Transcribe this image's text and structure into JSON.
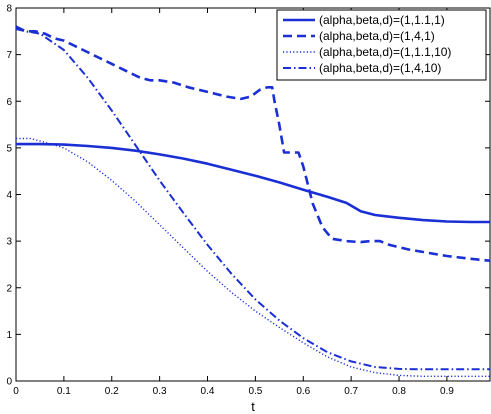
{
  "chart_data": {
    "type": "line",
    "title": "",
    "xlabel": "t",
    "ylabel": "",
    "xlim": [
      0,
      0.99
    ],
    "ylim": [
      0,
      8
    ],
    "xticks": [
      0,
      0.1,
      0.2,
      0.3,
      0.4,
      0.5,
      0.6,
      0.7,
      0.8,
      0.9
    ],
    "xtick_labels": [
      "0",
      "0.1",
      "0.2",
      "0.3",
      "0.4",
      "0.5",
      "0.6",
      "0.7",
      "0.8",
      "0.9"
    ],
    "yticks": [
      0,
      1,
      2,
      3,
      4,
      5,
      6,
      7,
      8
    ],
    "ytick_labels": [
      "0",
      "1",
      "2",
      "3",
      "4",
      "5",
      "6",
      "7",
      "8"
    ],
    "grid": false,
    "legend_position": "top-right",
    "color": "#1a2fd4",
    "series": [
      {
        "name": "(alpha,beta,d)=(1,1.1,1)",
        "style": "solid",
        "x": [
          0,
          0.05,
          0.1,
          0.15,
          0.2,
          0.25,
          0.3,
          0.35,
          0.4,
          0.45,
          0.5,
          0.55,
          0.6,
          0.65,
          0.69,
          0.72,
          0.75,
          0.8,
          0.85,
          0.9,
          0.95,
          0.99
        ],
        "y": [
          5.08,
          5.08,
          5.07,
          5.04,
          5.0,
          4.94,
          4.86,
          4.77,
          4.66,
          4.53,
          4.4,
          4.26,
          4.1,
          3.95,
          3.82,
          3.64,
          3.56,
          3.5,
          3.45,
          3.42,
          3.41,
          3.41
        ]
      },
      {
        "name": "(alpha,beta,d)=(1,4,1)",
        "style": "dashed",
        "x": [
          0,
          0.02,
          0.04,
          0.06,
          0.08,
          0.1,
          0.13,
          0.17,
          0.2,
          0.23,
          0.26,
          0.28,
          0.3,
          0.33,
          0.36,
          0.4,
          0.44,
          0.47,
          0.49,
          0.51,
          0.525,
          0.535,
          0.54,
          0.55,
          0.56,
          0.57,
          0.58,
          0.59,
          0.6,
          0.62,
          0.64,
          0.66,
          0.69,
          0.72,
          0.74,
          0.76,
          0.78,
          0.82,
          0.86,
          0.9,
          0.95,
          0.99
        ],
        "y": [
          7.6,
          7.5,
          7.5,
          7.45,
          7.35,
          7.3,
          7.15,
          6.95,
          6.8,
          6.65,
          6.5,
          6.45,
          6.45,
          6.4,
          6.3,
          6.2,
          6.1,
          6.05,
          6.1,
          6.25,
          6.3,
          6.3,
          6.0,
          5.5,
          4.9,
          4.9,
          4.9,
          4.9,
          4.6,
          3.8,
          3.3,
          3.05,
          3.0,
          2.98,
          3.0,
          3.0,
          2.92,
          2.82,
          2.75,
          2.68,
          2.62,
          2.58
        ]
      },
      {
        "name": "(alpha,beta,d)=(1,1.1,10)",
        "style": "dotted",
        "x": [
          0,
          0.03,
          0.06,
          0.1,
          0.15,
          0.2,
          0.25,
          0.3,
          0.35,
          0.4,
          0.45,
          0.5,
          0.55,
          0.6,
          0.65,
          0.7,
          0.75,
          0.8,
          0.85,
          0.9,
          0.95,
          0.99
        ],
        "y": [
          5.2,
          5.2,
          5.12,
          5.0,
          4.7,
          4.3,
          3.85,
          3.35,
          2.85,
          2.35,
          1.9,
          1.5,
          1.15,
          0.82,
          0.52,
          0.3,
          0.18,
          0.12,
          0.1,
          0.1,
          0.1,
          0.1
        ]
      },
      {
        "name": "(alpha,beta,d)=(1,4,10)",
        "style": "dashdot",
        "x": [
          0,
          0.02,
          0.05,
          0.1,
          0.15,
          0.2,
          0.25,
          0.3,
          0.35,
          0.4,
          0.45,
          0.5,
          0.55,
          0.6,
          0.65,
          0.7,
          0.75,
          0.8,
          0.85,
          0.9,
          0.95,
          0.99
        ],
        "y": [
          7.55,
          7.5,
          7.45,
          7.1,
          6.5,
          5.8,
          5.05,
          4.3,
          3.6,
          2.92,
          2.3,
          1.75,
          1.3,
          0.92,
          0.62,
          0.42,
          0.3,
          0.26,
          0.25,
          0.25,
          0.25,
          0.25
        ]
      }
    ]
  }
}
